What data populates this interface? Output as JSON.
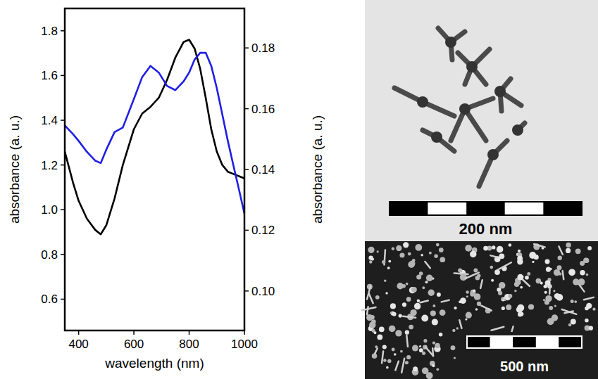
{
  "chart_data": {
    "type": "line",
    "x_label": "wavelength (nm)",
    "y_label": "absorbance (a. u.)",
    "y2_label": "absorbance (a. u.)",
    "xlim": [
      350,
      1000
    ],
    "xticks": [
      400,
      600,
      800,
      1000
    ],
    "ylim": [
      0.46,
      1.9
    ],
    "yticks": [
      0.6,
      0.8,
      {
        "value": 1,
        "label": "1.0"
      },
      1.2,
      1.4,
      1.6,
      1.8
    ],
    "y2lim": [
      0.087,
      0.193
    ],
    "y2ticks": [
      {
        "value": 0.1,
        "label": "0.10"
      },
      0.12,
      0.14,
      0.16,
      0.18
    ],
    "grid": false,
    "x": [
      350,
      380,
      400,
      430,
      460,
      480,
      500,
      530,
      560,
      600,
      630,
      660,
      690,
      720,
      750,
      780,
      800,
      820,
      840,
      860,
      880,
      900,
      920,
      940,
      960,
      980,
      1000
    ],
    "series": [
      {
        "color": "#000000",
        "values": [
          1.26,
          1.12,
          1.04,
          0.96,
          0.91,
          0.89,
          0.93,
          1.05,
          1.2,
          1.36,
          1.43,
          1.46,
          1.5,
          1.58,
          1.68,
          1.75,
          1.76,
          1.72,
          1.63,
          1.5,
          1.36,
          1.26,
          1.2,
          1.17,
          1.16,
          1.15,
          1.14
        ]
      },
      {
        "color": "#1f1fe6",
        "axis": "y2",
        "values": [
          0.1545,
          0.1516,
          0.1494,
          0.1458,
          0.1429,
          0.1421,
          0.1465,
          0.1523,
          0.1538,
          0.1632,
          0.1704,
          0.1741,
          0.1719,
          0.1675,
          0.1661,
          0.169,
          0.1719,
          0.1762,
          0.1784,
          0.1784,
          0.1741,
          0.1668,
          0.1581,
          0.1494,
          0.1414,
          0.1335,
          0.1255
        ]
      }
    ]
  },
  "micrographs": [
    {
      "scale_bar_label": "200 nm"
    },
    {
      "scale_bar_label": "500 nm"
    }
  ]
}
